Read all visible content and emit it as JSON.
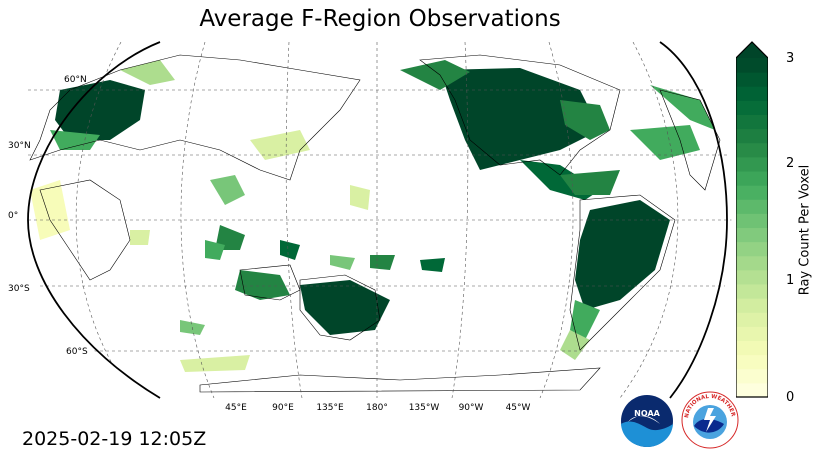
{
  "title": "Average F-Region Observations",
  "timestamp": "2025-02-19 12:05Z",
  "map": {
    "projection": "robinson",
    "central_longitude": 180,
    "lat_labels": [
      "60°N",
      "30°N",
      "0°",
      "30°S",
      "60°S"
    ],
    "lon_labels": [
      "45°E",
      "90°E",
      "135°E",
      "180°",
      "135°W",
      "90°W",
      "45°W"
    ]
  },
  "colorbar": {
    "label": "Ray Count Per Voxel",
    "ticks": [
      "0",
      "1",
      "2",
      "3"
    ],
    "range": [
      0,
      3
    ],
    "extend": "max",
    "cmap": "YlGn",
    "colors": [
      "#ffffe5",
      "#f7fcb9",
      "#d9f0a3",
      "#addd8e",
      "#78c679",
      "#41ab5d",
      "#238443",
      "#006837",
      "#004529"
    ]
  },
  "logos": {
    "noaa": "NOAA",
    "nws": "NATIONAL WEATHER SERVICE"
  }
}
